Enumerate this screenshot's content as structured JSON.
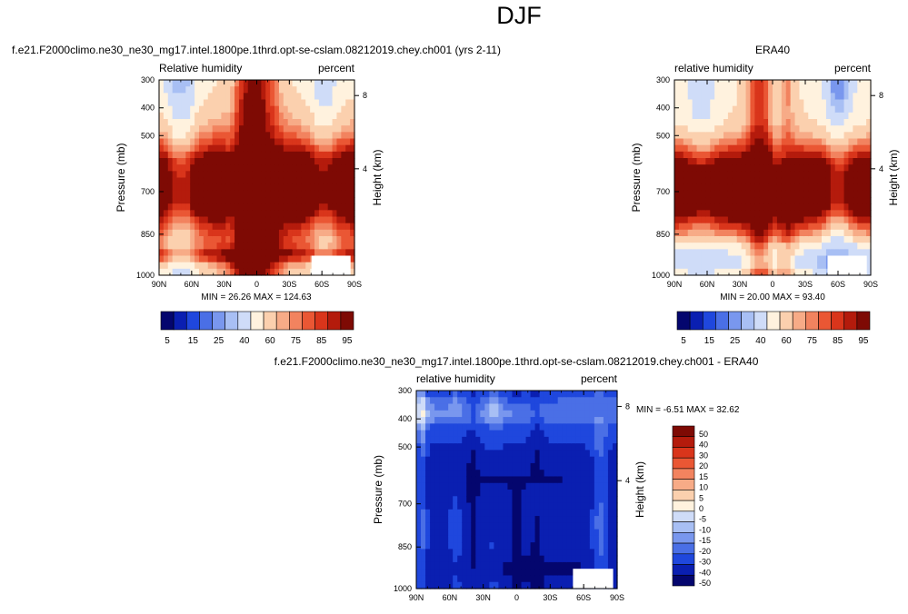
{
  "figure": {
    "title": "DJF"
  },
  "chart_data": [
    {
      "type": "heatmap",
      "title": "f.e21.F2000climo.ne30_ne30_mg17.intel.1800pe.1thrd.opt-se-cslam.08212019.chey.ch001 (yrs 2-11)",
      "left_string": "Relative humidity",
      "right_string": "percent",
      "xlabel": "",
      "ylabel": "Pressure (mb)",
      "y2label": "Height (km)",
      "x_ticks": [
        "90N",
        "60N",
        "30N",
        "0",
        "30S",
        "60S",
        "90S"
      ],
      "y_ticks": [
        "300",
        "400",
        "500",
        "700",
        "850",
        "1000"
      ],
      "y2_ticks": [
        "8",
        "4"
      ],
      "stats": "MIN =  26.26   MAX = 124.63",
      "colorbar_labels": [
        "5",
        "15",
        "25",
        "40",
        "60",
        "75",
        "85",
        "95"
      ],
      "colorbar_levels": 15
    },
    {
      "type": "heatmap",
      "title": "ERA40",
      "left_string": "relative humidity",
      "right_string": "percent",
      "xlabel": "",
      "ylabel": "Pressure (mb)",
      "y2label": "Height (km)",
      "x_ticks": [
        "90N",
        "60N",
        "30N",
        "0",
        "30S",
        "60S",
        "90S"
      ],
      "y_ticks": [
        "300",
        "400",
        "500",
        "700",
        "850",
        "1000"
      ],
      "y2_ticks": [
        "8",
        "4"
      ],
      "stats": "MIN =  20.00   MAX =  93.40",
      "colorbar_labels": [
        "5",
        "15",
        "25",
        "40",
        "60",
        "75",
        "85",
        "95"
      ],
      "colorbar_levels": 15
    },
    {
      "type": "heatmap",
      "title": "f.e21.F2000climo.ne30_ne30_mg17.intel.1800pe.1thrd.opt-se-cslam.08212019.chey.ch001 - ERA40",
      "left_string": "relative humidity",
      "right_string": "percent",
      "xlabel": "",
      "ylabel": "Pressure (mb)",
      "y2label": "Height (km)",
      "x_ticks": [
        "90N",
        "60N",
        "30N",
        "0",
        "30S",
        "60S",
        "90S"
      ],
      "y_ticks": [
        "300",
        "400",
        "500",
        "700",
        "850",
        "1000"
      ],
      "y2_ticks": [
        "8",
        "4"
      ],
      "stats": "MIN =  -6.51   MAX =  32.62",
      "colorbar_labels": [
        "50",
        "40",
        "30",
        "20",
        "15",
        "10",
        "5",
        "0",
        "-5",
        "-10",
        "-15",
        "-20",
        "-30",
        "-40",
        "-50"
      ]
    }
  ],
  "colors": {
    "seq": [
      "#04066e",
      "#0a1fb1",
      "#1f47dd",
      "#4a6fe6",
      "#7997ee",
      "#a8bff4",
      "#cfdcf8",
      "#fff2de",
      "#fbd0ae",
      "#f7ab87",
      "#f2835f",
      "#ea5734",
      "#d9351b",
      "#b41b0c",
      "#7e0a04"
    ],
    "diff": [
      "#7e0a04",
      "#b41b0c",
      "#d9351b",
      "#ea5734",
      "#f2835f",
      "#f7ab87",
      "#fbd0ae",
      "#fff2de",
      "#cfdcf8",
      "#a8bff4",
      "#7997ee",
      "#4a6fe6",
      "#1f47dd",
      "#0a1fb1",
      "#04066e"
    ]
  }
}
